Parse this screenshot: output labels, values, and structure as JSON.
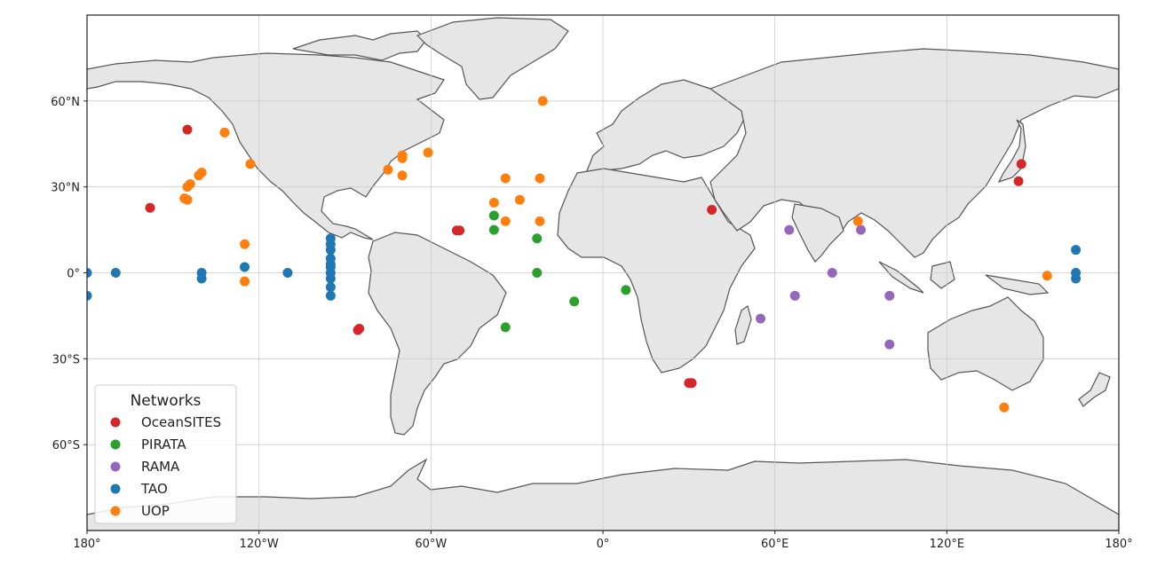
{
  "chart_data": {
    "type": "scatter",
    "projection": "plate-carree",
    "xlim": [
      -180,
      180
    ],
    "ylim": [
      -90,
      90
    ],
    "grid": true,
    "x_ticks": [
      {
        "value": -180,
        "label": "180°"
      },
      {
        "value": -120,
        "label": "120°W"
      },
      {
        "value": -60,
        "label": "60°W"
      },
      {
        "value": 0,
        "label": "0°"
      },
      {
        "value": 60,
        "label": "60°E"
      },
      {
        "value": 120,
        "label": "120°E"
      },
      {
        "value": 180,
        "label": "180°"
      }
    ],
    "y_ticks": [
      {
        "value": 60,
        "label": "60°N"
      },
      {
        "value": 30,
        "label": "30°N"
      },
      {
        "value": 0,
        "label": "0°"
      },
      {
        "value": -30,
        "label": "30°S"
      },
      {
        "value": -60,
        "label": "60°S"
      }
    ],
    "legend": {
      "title": "Networks",
      "placement": "bottom-left"
    },
    "colors": {
      "land": "#e6e6e6",
      "coast": "#555555",
      "grid": "#cccccc"
    },
    "series": [
      {
        "name": "OceanSITES",
        "color": "#d62728",
        "points": [
          [
            -145,
            50
          ],
          [
            -158,
            22.7
          ],
          [
            -51,
            14.8
          ],
          [
            -50,
            14.8
          ],
          [
            -85,
            -19.5
          ],
          [
            -85.5,
            -20
          ],
          [
            30,
            -38.5
          ],
          [
            31,
            -38.5
          ],
          [
            38,
            22
          ],
          [
            145,
            32
          ],
          [
            146,
            38
          ]
        ]
      },
      {
        "name": "PIRATA",
        "color": "#2ca02c",
        "points": [
          [
            -38,
            20
          ],
          [
            -38,
            15
          ],
          [
            -23,
            12
          ],
          [
            -23,
            0
          ],
          [
            -10,
            -10
          ],
          [
            8,
            -6
          ],
          [
            -34,
            -19
          ]
        ]
      },
      {
        "name": "RAMA",
        "color": "#9467bd",
        "points": [
          [
            65,
            15
          ],
          [
            90,
            15
          ],
          [
            80,
            0
          ],
          [
            67,
            -8
          ],
          [
            55,
            -16
          ],
          [
            100,
            -8
          ],
          [
            100,
            -25
          ]
        ]
      },
      {
        "name": "TAO",
        "color": "#1f77b4",
        "points": [
          [
            -180,
            0
          ],
          [
            -180,
            -8
          ],
          [
            -170,
            0
          ],
          [
            -140,
            0
          ],
          [
            -140,
            -2
          ],
          [
            -125,
            2
          ],
          [
            -110,
            0
          ],
          [
            -95,
            12
          ],
          [
            -95,
            10
          ],
          [
            -95,
            8
          ],
          [
            -95,
            5
          ],
          [
            -95,
            3
          ],
          [
            -95,
            2
          ],
          [
            -95,
            0
          ],
          [
            -95,
            -2
          ],
          [
            -95,
            -5
          ],
          [
            -95,
            -8
          ],
          [
            165,
            8
          ],
          [
            165,
            0
          ],
          [
            165,
            -2
          ]
        ]
      },
      {
        "name": "UOP",
        "color": "#ff7f0e",
        "points": [
          [
            -132,
            49
          ],
          [
            -123,
            38
          ],
          [
            -140,
            35
          ],
          [
            -141,
            34
          ],
          [
            -144,
            31
          ],
          [
            -145,
            30
          ],
          [
            -146,
            26
          ],
          [
            -145,
            25.5
          ],
          [
            -125,
            10
          ],
          [
            -125,
            -3
          ],
          [
            -75,
            36
          ],
          [
            -70,
            40
          ],
          [
            -70,
            41
          ],
          [
            -70,
            34
          ],
          [
            -61,
            42
          ],
          [
            -21,
            60
          ],
          [
            -34,
            33
          ],
          [
            -22,
            33
          ],
          [
            -38,
            24.5
          ],
          [
            -29,
            25.5
          ],
          [
            -34,
            18
          ],
          [
            -22,
            18
          ],
          [
            89,
            18
          ],
          [
            155,
            -1
          ],
          [
            140,
            -47
          ]
        ]
      }
    ]
  }
}
